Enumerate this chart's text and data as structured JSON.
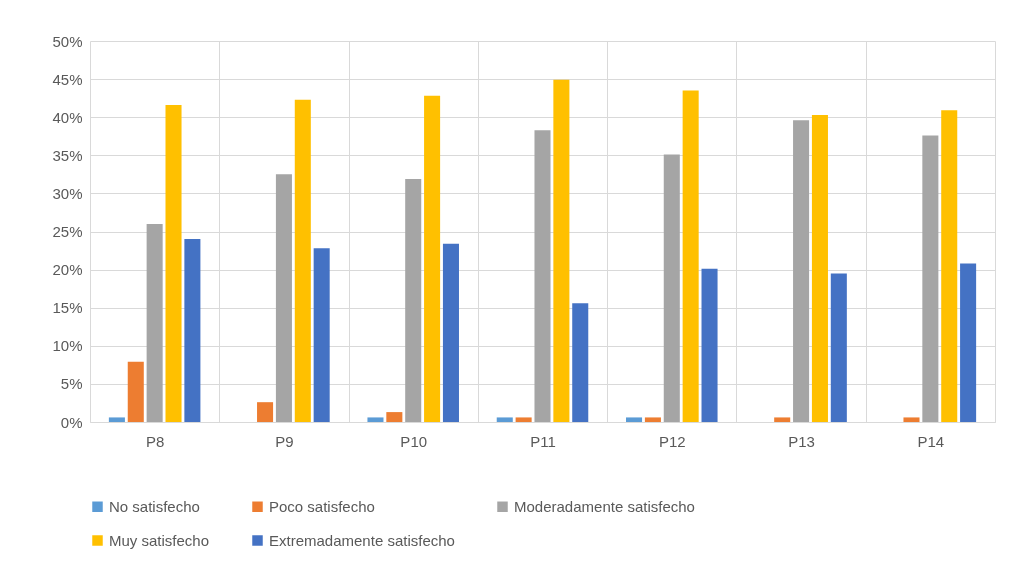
{
  "chart_data": {
    "type": "bar",
    "categories": [
      "P8",
      "P9",
      "P10",
      "P11",
      "P12",
      "P13",
      "P14"
    ],
    "series": [
      {
        "name": "No satisfecho",
        "color": "#5b9bd5",
        "values": [
          0.6,
          0,
          0.6,
          0.6,
          0.6,
          0,
          0
        ]
      },
      {
        "name": "Poco satisfecho",
        "color": "#ed7d31",
        "values": [
          7.9,
          2.6,
          1.3,
          0.6,
          0.6,
          0.6,
          0.6
        ]
      },
      {
        "name": "Moderadamente satisfecho",
        "color": "#a5a5a5",
        "values": [
          26,
          32.5,
          31.9,
          38.3,
          35.1,
          39.6,
          37.6
        ]
      },
      {
        "name": "Muy satisfecho",
        "color": "#ffc000",
        "values": [
          41.6,
          42.3,
          42.8,
          44.9,
          43.5,
          40.3,
          40.9
        ]
      },
      {
        "name": "Extremadamente satisfecho",
        "color": "#4472c4",
        "values": [
          24,
          22.8,
          23.4,
          15.6,
          20.1,
          19.5,
          20.8
        ]
      }
    ],
    "ylim": [
      0,
      50
    ],
    "yticks": [
      {
        "value": 0,
        "label": "0%"
      },
      {
        "value": 5,
        "label": "5%"
      },
      {
        "value": 10,
        "label": "10%"
      },
      {
        "value": 15,
        "label": "15%"
      },
      {
        "value": 20,
        "label": "20%"
      },
      {
        "value": 25,
        "label": "25%"
      },
      {
        "value": 30,
        "label": "30%"
      },
      {
        "value": 35,
        "label": "35%"
      },
      {
        "value": 40,
        "label": "40%"
      },
      {
        "value": 45,
        "label": "45%"
      },
      {
        "value": 50,
        "label": "50%"
      }
    ],
    "grid": true,
    "legend": "bottom"
  }
}
